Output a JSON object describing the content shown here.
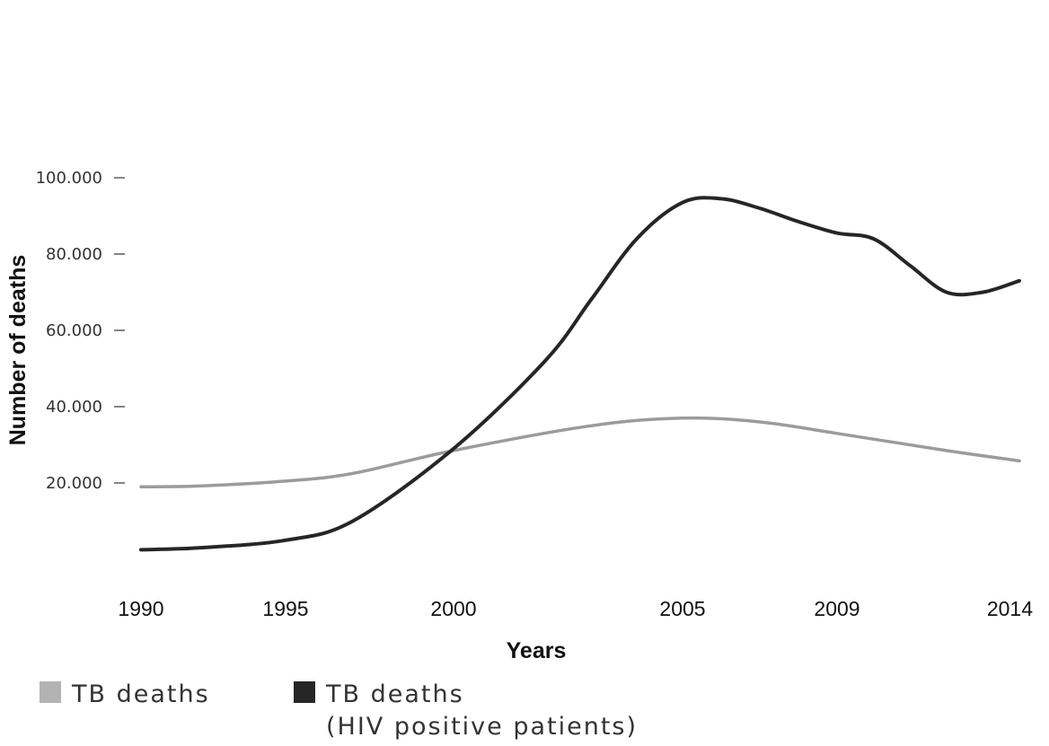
{
  "chart_data": {
    "type": "line",
    "title": "",
    "xlabel": "Years",
    "ylabel": "Number of deaths",
    "x_ticks": [
      "1990",
      "1995",
      "2000",
      "2005",
      "2009",
      "2014"
    ],
    "y_ticks": [
      "20.000",
      "40.000",
      "60.000",
      "80.000",
      "100.000"
    ],
    "ylim": [
      0,
      100000
    ],
    "grid": false,
    "legend_position": "bottom-left",
    "series": [
      {
        "name": "TB deaths",
        "color": "#9b9b9b",
        "x": [
          1990,
          1992,
          1995,
          1997,
          2000,
          2003,
          2005,
          2007,
          2009,
          2012,
          2014
        ],
        "values": [
          19000,
          19200,
          20500,
          22500,
          28500,
          35000,
          37000,
          36000,
          33000,
          28500,
          25800
        ]
      },
      {
        "name": "TB deaths\n(HIV positive patients)",
        "color": "#262626",
        "x": [
          1990,
          1992,
          1995,
          1997,
          2000,
          2002,
          2003,
          2004,
          2005,
          2006,
          2007,
          2008,
          2009,
          2010,
          2011,
          2012,
          2013,
          2014
        ],
        "values": [
          2500,
          3000,
          5000,
          10000,
          29000,
          52000,
          68000,
          84000,
          93500,
          94500,
          92000,
          88500,
          85500,
          84000,
          77000,
          70000,
          70000,
          73000
        ]
      }
    ]
  },
  "legend": {
    "items": [
      {
        "label": "TB deaths",
        "color": "#b3b3b3"
      },
      {
        "label": "TB deaths\n(HIV positive patients)",
        "color": "#262626"
      }
    ]
  }
}
